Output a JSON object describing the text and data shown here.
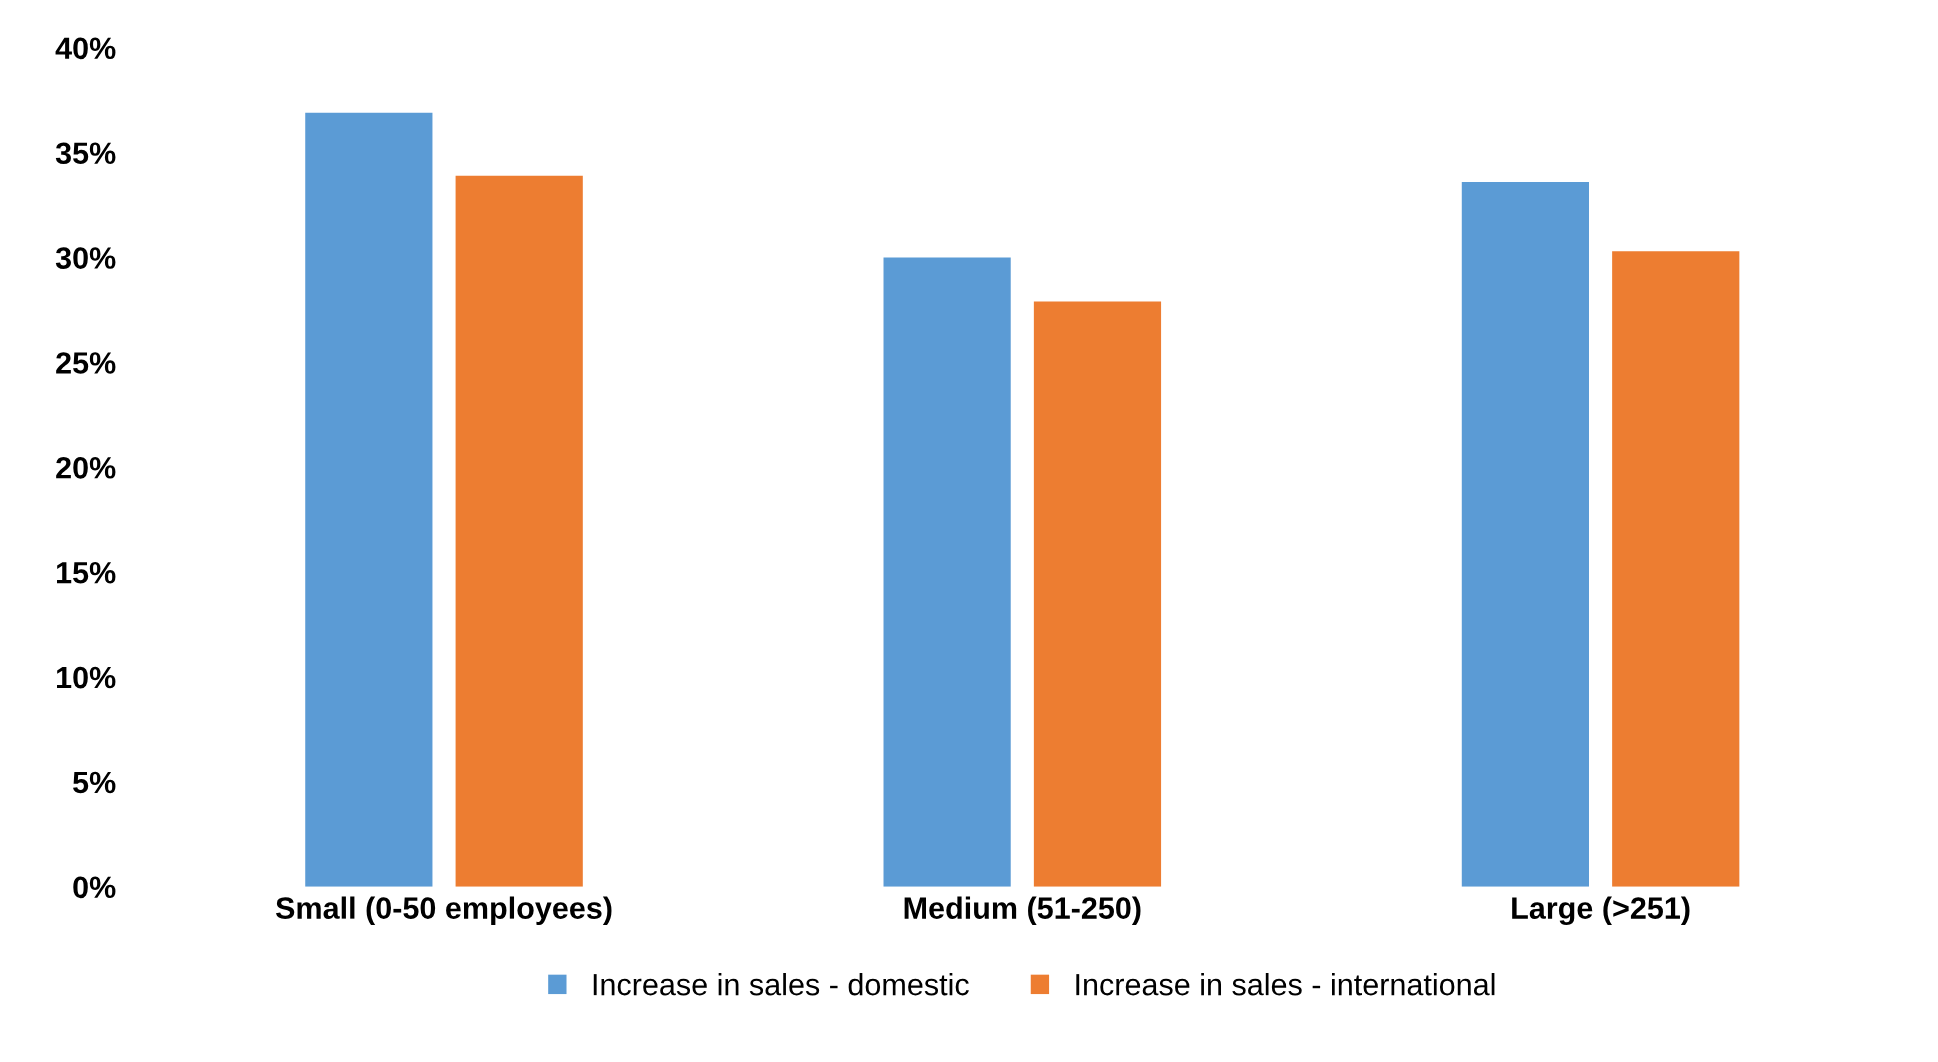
{
  "chart_data": {
    "type": "bar",
    "categories": [
      "Small (0-50 employees)",
      "Medium (51-250)",
      "Large (>251)"
    ],
    "series": [
      {
        "name": "Increase in sales - domestic",
        "color": "#5b9bd5",
        "values": [
          36.9,
          30.0,
          33.6
        ]
      },
      {
        "name": "Increase in sales - international",
        "color": "#ed7d31",
        "values": [
          33.9,
          27.9,
          30.3
        ]
      }
    ],
    "ylim": [
      0,
      40
    ],
    "yticks": [
      {
        "value": 0,
        "label": "0%"
      },
      {
        "value": 5,
        "label": "5%"
      },
      {
        "value": 10,
        "label": "10%"
      },
      {
        "value": 15,
        "label": "15%"
      },
      {
        "value": 20,
        "label": "20%"
      },
      {
        "value": 25,
        "label": "25%"
      },
      {
        "value": 30,
        "label": "30%"
      },
      {
        "value": 35,
        "label": "35%"
      },
      {
        "value": 40,
        "label": "40%"
      }
    ],
    "grid": false,
    "legend": "bottom"
  }
}
